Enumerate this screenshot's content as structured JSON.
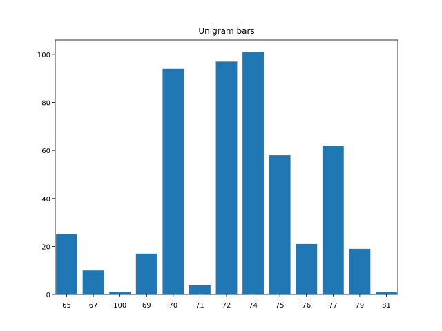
{
  "chart_data": {
    "type": "bar",
    "title": "Unigram bars",
    "xlabel": "",
    "ylabel": "",
    "categories": [
      "65",
      "67",
      "100",
      "69",
      "70",
      "71",
      "72",
      "74",
      "75",
      "76",
      "77",
      "79",
      "81"
    ],
    "values": [
      25,
      10,
      1,
      17,
      94,
      4,
      97,
      101,
      58,
      21,
      62,
      19,
      1
    ],
    "ylim": [
      0,
      106
    ],
    "yticks": [
      0,
      20,
      40,
      60,
      80,
      100
    ],
    "grid": false,
    "bar_color": "#1f77b4"
  }
}
